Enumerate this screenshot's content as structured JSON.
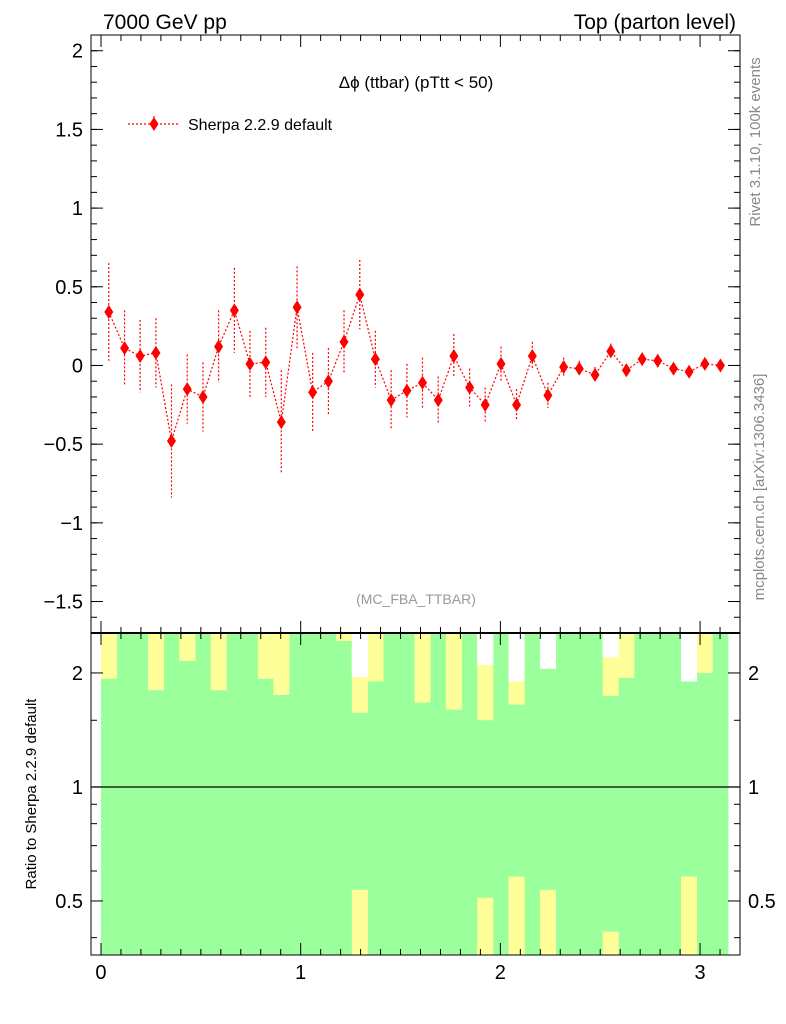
{
  "header": {
    "left": "7000 GeV pp",
    "right": "Top (parton level)"
  },
  "side_labels": {
    "version": "Rivet 3.1.10,  100k events",
    "source": "mcplots.cern.ch [arXiv:1306.3436]"
  },
  "analysis_tag": "(MC_FBA_TTBAR)",
  "chart_data": [
    {
      "type": "scatter",
      "title": "Δϕ (ttbar) (pTtt < 50)",
      "xlim": [
        -0.05,
        3.2
      ],
      "ylim": [
        -1.7,
        2.1
      ],
      "yticks": [
        "2",
        "1.5",
        "1",
        "0.5",
        "0",
        "−0.5",
        "−1",
        "−1.5"
      ],
      "ytick_values": [
        2,
        1.5,
        1,
        0.5,
        0,
        -0.5,
        -1,
        -1.5
      ],
      "legend": "top-left",
      "series": [
        {
          "name": "Sherpa 2.2.9 default",
          "color": "#ff0000",
          "x": [
            0.039,
            0.118,
            0.196,
            0.275,
            0.353,
            0.432,
            0.511,
            0.589,
            0.668,
            0.746,
            0.825,
            0.903,
            0.982,
            1.06,
            1.139,
            1.217,
            1.296,
            1.374,
            1.453,
            1.532,
            1.61,
            1.689,
            1.767,
            1.846,
            1.924,
            2.003,
            2.081,
            2.16,
            2.238,
            2.317,
            2.395,
            2.474,
            2.553,
            2.631,
            2.71,
            2.788,
            2.867,
            2.945,
            3.024,
            3.102
          ],
          "y": [
            0.34,
            0.11,
            0.06,
            0.08,
            -0.48,
            -0.15,
            -0.2,
            0.12,
            0.35,
            0.01,
            0.02,
            -0.36,
            0.37,
            -0.17,
            -0.1,
            0.15,
            0.45,
            0.04,
            -0.22,
            -0.16,
            -0.11,
            -0.22,
            0.06,
            -0.14,
            -0.25,
            0.01,
            -0.25,
            0.06,
            -0.19,
            -0.01,
            -0.02,
            -0.06,
            0.09,
            -0.03,
            0.04,
            0.03,
            -0.02,
            -0.04,
            0.01,
            0.0
          ],
          "yerr": [
            0.31,
            0.24,
            0.23,
            0.22,
            0.36,
            0.22,
            0.22,
            0.23,
            0.27,
            0.21,
            0.22,
            0.33,
            0.26,
            0.25,
            0.21,
            0.2,
            0.22,
            0.18,
            0.19,
            0.17,
            0.16,
            0.15,
            0.14,
            0.12,
            0.11,
            0.11,
            0.1,
            0.09,
            0.08,
            0.06,
            0.05,
            0.05,
            0.05,
            0.04,
            0.04,
            0.04,
            0.03,
            0.03,
            0.03,
            0.03
          ]
        }
      ]
    },
    {
      "type": "bar",
      "ylabel": "Ratio to Sherpa 2.2.9 default",
      "xlim": [
        -0.05,
        3.2
      ],
      "ylim": [
        0.36,
        2.55
      ],
      "yscale": "log",
      "xticks": [
        "0",
        "1",
        "2",
        "3"
      ],
      "xtick_values": [
        0,
        1,
        2,
        3
      ],
      "yticks": [
        "2",
        "1",
        "0.5"
      ],
      "ytick_values": [
        2,
        1,
        0.5
      ],
      "reference_line": 1,
      "bin_edges": [
        0.0,
        0.0785,
        0.157,
        0.2355,
        0.314,
        0.3925,
        0.471,
        0.5495,
        0.628,
        0.7065,
        0.785,
        0.8635,
        0.942,
        1.0205,
        1.099,
        1.1775,
        1.256,
        1.3345,
        1.413,
        1.4915,
        1.57,
        1.6485,
        1.727,
        1.8055,
        1.884,
        1.9625,
        2.041,
        2.1195,
        2.198,
        2.2765,
        2.355,
        2.4335,
        2.512,
        2.5905,
        2.669,
        2.7475,
        2.826,
        2.9045,
        2.983,
        3.0615,
        3.14
      ],
      "bands": [
        {
          "name": "green band",
          "color": "#9bff9b",
          "lower": [
            0.36,
            0.36,
            0.36,
            0.36,
            0.36,
            0.36,
            0.36,
            0.36,
            0.36,
            0.36,
            0.36,
            0.36,
            0.36,
            0.36,
            0.36,
            0.36,
            0.36,
            0.36,
            0.36,
            0.36,
            0.36,
            0.36,
            0.36,
            0.36,
            0.36,
            0.36,
            0.36,
            0.36,
            0.36,
            0.36,
            0.36,
            0.36,
            0.36,
            0.36,
            0.36,
            0.36,
            0.36,
            0.36,
            0.36,
            0.36
          ],
          "upper": [
            2.55,
            2.55,
            2.55,
            2.55,
            2.55,
            2.55,
            2.55,
            2.55,
            2.55,
            2.55,
            2.55,
            2.55,
            2.55,
            2.55,
            2.55,
            2.55,
            2.55,
            2.55,
            2.55,
            2.55,
            2.55,
            2.55,
            2.55,
            2.55,
            2.55,
            2.55,
            2.55,
            2.55,
            2.55,
            2.55,
            2.55,
            2.55,
            2.55,
            2.55,
            2.55,
            2.55,
            2.55,
            2.55,
            2.55,
            2.55
          ]
        },
        {
          "name": "yellow band",
          "color": "#ffff99",
          "lower": [
            1.93,
            2.55,
            2.55,
            1.8,
            2.55,
            2.15,
            2.55,
            1.8,
            2.55,
            2.55,
            1.93,
            1.75,
            2.55,
            2.55,
            2.55,
            2.43,
            1.57,
            1.9,
            2.55,
            2.55,
            1.67,
            2.55,
            1.6,
            2.55,
            1.5,
            2.55,
            1.65,
            2.55,
            2.55,
            2.55,
            2.55,
            2.55,
            1.74,
            1.94,
            2.55,
            2.55,
            2.55,
            2.55,
            2.0,
            2.55
          ],
          "upper": [
            2.55,
            2.55,
            2.55,
            2.55,
            2.55,
            2.55,
            2.55,
            2.55,
            2.55,
            2.55,
            2.55,
            2.55,
            2.55,
            2.55,
            2.55,
            2.55,
            2.55,
            2.55,
            2.55,
            2.55,
            2.55,
            2.55,
            2.55,
            2.55,
            2.55,
            2.55,
            2.55,
            2.55,
            2.55,
            2.55,
            2.55,
            2.55,
            2.55,
            2.55,
            2.55,
            2.55,
            2.55,
            2.55,
            2.55,
            2.55
          ]
        },
        {
          "name": "white band",
          "color": "#ffffff",
          "lower": [
            0.36,
            0.36,
            0.36,
            0.36,
            0.36,
            0.36,
            0.36,
            0.36,
            0.36,
            0.36,
            0.36,
            0.36,
            0.36,
            0.36,
            0.36,
            0.36,
            1.95,
            0.36,
            0.36,
            0.36,
            0.36,
            0.36,
            0.36,
            0.36,
            2.1,
            0.36,
            1.9,
            0.36,
            2.05,
            0.36,
            0.36,
            0.36,
            2.2,
            0.36,
            0.36,
            0.36,
            0.36,
            1.9,
            0.36,
            0.36
          ],
          "upper": [
            0.36,
            0.36,
            0.36,
            0.36,
            0.36,
            0.36,
            0.36,
            0.36,
            0.36,
            0.36,
            0.36,
            0.36,
            0.36,
            0.36,
            0.36,
            0.36,
            2.55,
            0.36,
            0.36,
            0.36,
            0.36,
            0.36,
            0.36,
            0.36,
            2.55,
            0.36,
            2.55,
            0.36,
            2.55,
            0.36,
            0.36,
            0.36,
            2.55,
            0.36,
            0.36,
            0.36,
            0.36,
            2.55,
            0.36,
            0.36
          ]
        },
        {
          "name": "lower yellow band",
          "color": "#ffff99",
          "lower": [
            0.36,
            0.36,
            0.36,
            0.36,
            0.36,
            0.36,
            0.36,
            0.36,
            0.36,
            0.36,
            0.36,
            0.36,
            0.36,
            0.36,
            0.36,
            0.36,
            0.36,
            0.36,
            0.36,
            0.36,
            0.36,
            0.36,
            0.36,
            0.36,
            0.36,
            0.36,
            0.36,
            0.36,
            0.36,
            0.36,
            0.36,
            0.36,
            0.36,
            0.36,
            0.36,
            0.36,
            0.36,
            0.36,
            0.36,
            0.36
          ],
          "upper": [
            0.36,
            0.36,
            0.36,
            0.36,
            0.36,
            0.36,
            0.36,
            0.36,
            0.36,
            0.36,
            0.36,
            0.36,
            0.36,
            0.36,
            0.36,
            0.36,
            0.535,
            0.36,
            0.36,
            0.36,
            0.36,
            0.36,
            0.36,
            0.36,
            0.51,
            0.36,
            0.58,
            0.36,
            0.535,
            0.36,
            0.36,
            0.36,
            0.415,
            0.36,
            0.36,
            0.36,
            0.36,
            0.58,
            0.36,
            0.36
          ]
        }
      ]
    }
  ]
}
